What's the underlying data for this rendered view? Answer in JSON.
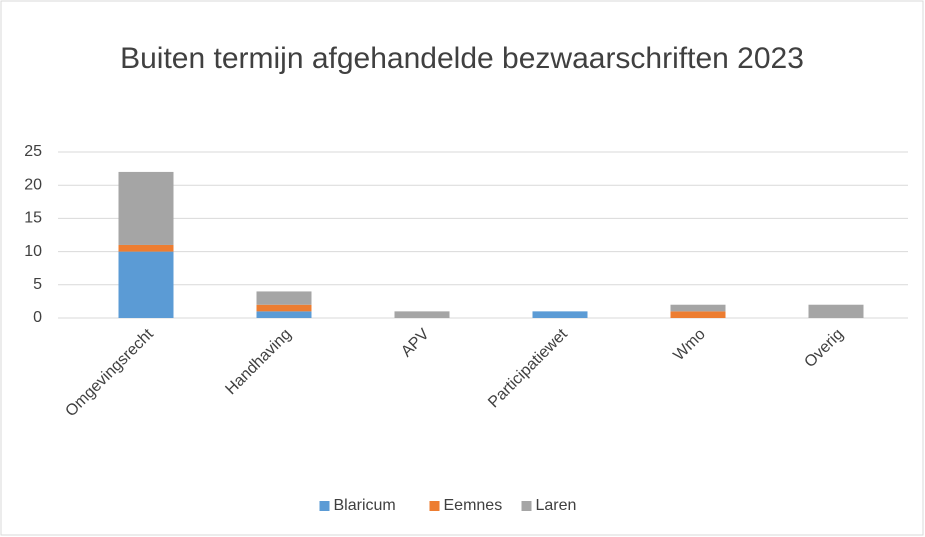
{
  "chart_data": {
    "type": "bar",
    "stacked": true,
    "title": "Buiten termijn afgehandelde bezwaarschriften 2023",
    "categories": [
      "Omgevingsrecht",
      "Handhaving",
      "APV",
      "Participatiewet",
      "Wmo",
      "Overig"
    ],
    "series": [
      {
        "name": "Blaricum",
        "color": "#5b9bd5",
        "values": [
          10,
          1,
          0,
          1,
          0,
          0
        ]
      },
      {
        "name": "Eemnes",
        "color": "#ed7d31",
        "values": [
          1,
          1,
          0,
          0,
          1,
          0
        ]
      },
      {
        "name": "Laren",
        "color": "#a5a5a5",
        "values": [
          11,
          2,
          1,
          0,
          1,
          2
        ]
      }
    ],
    "ylim": [
      0,
      25
    ],
    "yticks": [
      0,
      5,
      10,
      15,
      20,
      25
    ],
    "grid": true,
    "legend": "bottom"
  }
}
